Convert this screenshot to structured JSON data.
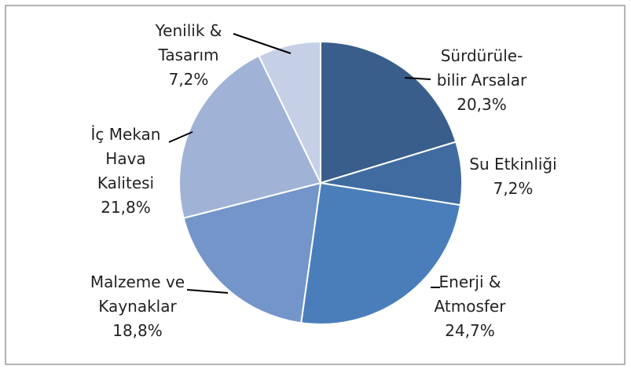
{
  "chart_data": {
    "type": "pie",
    "categories": [
      "Sürdürüle-\nbilir Arsalar",
      "Su Etkinliği",
      "Enerji &\nAtmosfer",
      "Malzeme ve\nKaynaklar",
      "İç Mekan\nHava\nKalitesi",
      "Yenilik &\nTasarım"
    ],
    "values": [
      20.3,
      7.2,
      24.7,
      18.8,
      21.8,
      7.2
    ],
    "value_labels": [
      "20,3%",
      "7,2%",
      "24,7%",
      "18,8%",
      "21,8%",
      "7,2%"
    ],
    "colors": [
      "#395e8b",
      "#3f6ba1",
      "#4a7ebb",
      "#7395c9",
      "#a0b3d6",
      "#c5d0e6"
    ]
  }
}
